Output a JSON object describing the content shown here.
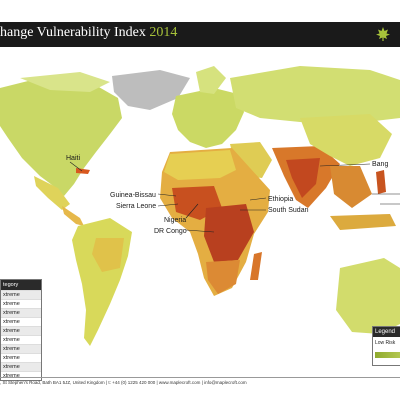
{
  "header": {
    "title": "hange Vulnerability Index",
    "year": "2014"
  },
  "labels": {
    "haiti": "Haiti",
    "guinea_bissau": "Guinea-Bissau",
    "sierra_leone": "Sierra Leone",
    "nigeria": "Nigeria",
    "dr_congo": "DR Congo",
    "ethiopia": "Ethiopia",
    "south_sudan": "South Sudan",
    "bangladesh_partial": "Bang"
  },
  "category_panel": {
    "title": "tegory",
    "rows": [
      "xtreme",
      "xtreme",
      "xtreme",
      "xtreme",
      "xtreme",
      "xtreme",
      "xtreme",
      "xtreme",
      "xtreme",
      "xtreme"
    ]
  },
  "legend": {
    "title": "Legend",
    "low_label": "Low Risk"
  },
  "footer": {
    "text": ", St Stephen's Road, Bath BA1 5JZ, United Kingdom | t: +44 (0) 1225 420 000 | www.maplecroft.com | info@maplecroft.com"
  },
  "colors": {
    "low": "#c9d866",
    "medium": "#e6cf52",
    "high": "#e08a2e",
    "extreme": "#b8401f",
    "ocean": "#ffffff",
    "no_data": "#bdbdbd",
    "accent": "#a7c23a"
  }
}
